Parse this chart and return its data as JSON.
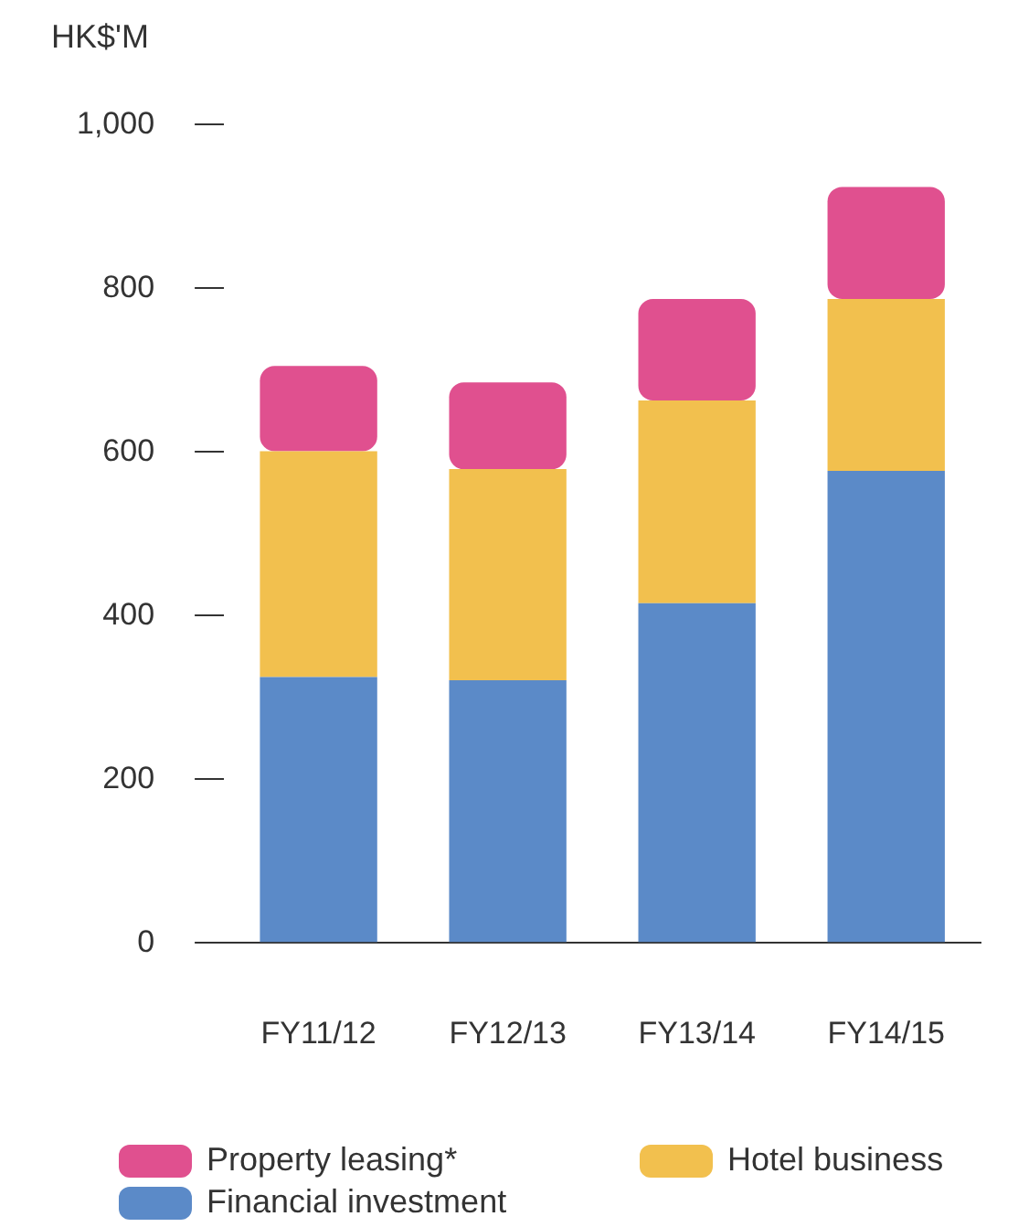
{
  "chart_data": {
    "type": "bar",
    "stacked": true,
    "ylabel": "HK$'M",
    "categories": [
      "FY11/12",
      "FY12/13",
      "FY13/14",
      "FY14/15"
    ],
    "series": [
      {
        "name": "Financial investment",
        "color": "#5b8ac8",
        "values": [
          325,
          321,
          415,
          577
        ]
      },
      {
        "name": "Hotel business",
        "color": "#f2c04e",
        "values": [
          276,
          258,
          248,
          210
        ]
      },
      {
        "name": "Property leasing*",
        "color": "#e0508f",
        "values": [
          104,
          106,
          124,
          137
        ]
      }
    ],
    "ylim": [
      0,
      1000
    ],
    "yticks": [
      0,
      200,
      400,
      600,
      800,
      {
        "value": 1000,
        "label": "1,000"
      }
    ],
    "grid": false,
    "legend": "bottom"
  }
}
